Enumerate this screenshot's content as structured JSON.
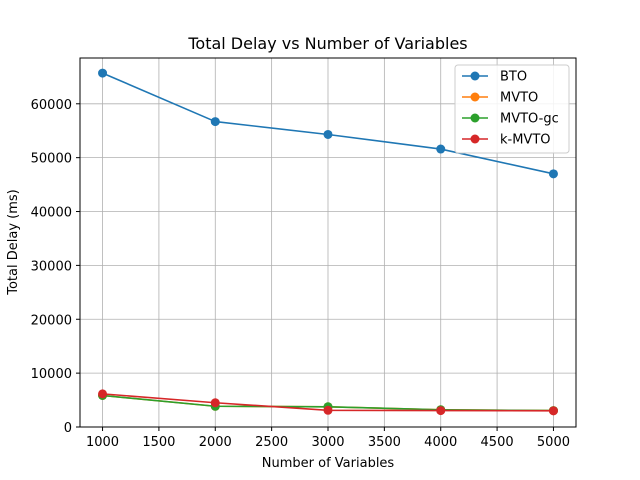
{
  "chart_data": {
    "type": "line",
    "title": "Total Delay vs Number of Variables",
    "xlabel": "Number of Variables",
    "ylabel": "Total Delay (ms)",
    "xlim": [
      800,
      5200
    ],
    "ylim": [
      0,
      68500
    ],
    "x_ticks": [
      1000,
      1500,
      2000,
      2500,
      3000,
      3500,
      4000,
      4500,
      5000
    ],
    "y_ticks": [
      0,
      10000,
      20000,
      30000,
      40000,
      50000,
      60000
    ],
    "grid": true,
    "legend_position": "top-right",
    "x": [
      1000,
      2000,
      3000,
      4000,
      5000
    ],
    "series": [
      {
        "name": "BTO",
        "color": "#1f77b4",
        "values": [
          65700,
          56700,
          54300,
          51600,
          47000
        ]
      },
      {
        "name": "MVTO",
        "color": "#ff7f0e",
        "values": [
          5850,
          3850,
          3750,
          3200,
          3050
        ]
      },
      {
        "name": "MVTO-gc",
        "color": "#2ca02c",
        "values": [
          5850,
          3850,
          3750,
          3200,
          3050
        ]
      },
      {
        "name": "k-MVTO",
        "color": "#d62728",
        "values": [
          6150,
          4500,
          3100,
          3050,
          3000
        ]
      }
    ]
  }
}
